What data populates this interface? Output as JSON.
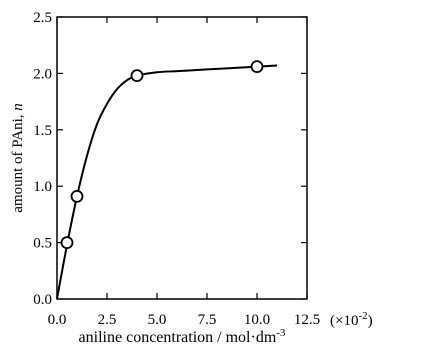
{
  "chart_data": {
    "type": "scatter",
    "title": "",
    "xlabel": "aniline concentration / mol·dm",
    "xlabel_superscript": "-3",
    "x_multiplier": "(×10",
    "x_multiplier_superscript": "-2",
    "x_multiplier_close": ")",
    "ylabel_prefix": "amount of PAni, ",
    "ylabel_variable": "n",
    "xlim": [
      0,
      12.5
    ],
    "ylim": [
      0,
      2.5
    ],
    "x_ticks": [
      0,
      2.5,
      5,
      7.5,
      10,
      12.5
    ],
    "x_tick_labels": [
      "0.0",
      "2.5",
      "5.0",
      "7.5",
      "10.0",
      "12.5"
    ],
    "y_ticks": [
      0,
      0.5,
      1,
      1.5,
      2,
      2.5
    ],
    "y_tick_labels": [
      "0.0",
      "0.5",
      "1.0",
      "1.5",
      "2.0",
      "2.5"
    ],
    "grid": false,
    "legend": "none",
    "series": [
      {
        "kind": "markers",
        "marker": "open-circle",
        "points": [
          {
            "x": 0.5,
            "y": 0.5
          },
          {
            "x": 1.0,
            "y": 0.91
          },
          {
            "x": 4.0,
            "y": 1.98
          },
          {
            "x": 10.0,
            "y": 2.06
          }
        ]
      },
      {
        "kind": "fit-curve",
        "points": [
          {
            "x": 0.0,
            "y": 0.0
          },
          {
            "x": 0.5,
            "y": 0.48
          },
          {
            "x": 1.0,
            "y": 0.91
          },
          {
            "x": 1.5,
            "y": 1.27
          },
          {
            "x": 2.0,
            "y": 1.55
          },
          {
            "x": 2.5,
            "y": 1.73
          },
          {
            "x": 3.0,
            "y": 1.86
          },
          {
            "x": 3.5,
            "y": 1.94
          },
          {
            "x": 4.0,
            "y": 1.98
          },
          {
            "x": 5.0,
            "y": 2.01
          },
          {
            "x": 6.0,
            "y": 2.02
          },
          {
            "x": 7.0,
            "y": 2.03
          },
          {
            "x": 8.0,
            "y": 2.04
          },
          {
            "x": 9.0,
            "y": 2.05
          },
          {
            "x": 10.0,
            "y": 2.06
          },
          {
            "x": 11.0,
            "y": 2.07
          }
        ]
      }
    ]
  }
}
